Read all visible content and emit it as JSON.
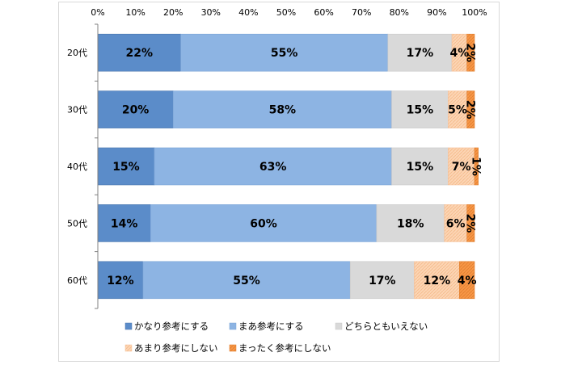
{
  "chart_data": {
    "type": "bar",
    "orientation": "horizontal",
    "stacked": true,
    "categories": [
      "20代",
      "30代",
      "40代",
      "50代",
      "60代"
    ],
    "series": [
      {
        "name": "かなり参考にする",
        "values": [
          22,
          20,
          15,
          14,
          12
        ],
        "labels": [
          "22%",
          "20%",
          "15%",
          "14%",
          "12%"
        ]
      },
      {
        "name": "まあ参考にする",
        "values": [
          55,
          58,
          63,
          60,
          55
        ],
        "labels": [
          "55%",
          "58%",
          "63%",
          "60%",
          "55%"
        ]
      },
      {
        "name": "どちらともいえない",
        "values": [
          17,
          15,
          15,
          18,
          17
        ],
        "labels": [
          "17%",
          "15%",
          "15%",
          "18%",
          "17%"
        ]
      },
      {
        "name": "あまり参考にしない",
        "values": [
          4,
          5,
          7,
          6,
          12
        ],
        "labels": [
          "4%",
          "5%",
          "7%",
          "6%",
          "12%"
        ]
      },
      {
        "name": "まったく参考にしない",
        "values": [
          2,
          2,
          1,
          2,
          4
        ],
        "labels": [
          "2%",
          "2%",
          "1%",
          "2%",
          "4%"
        ]
      }
    ],
    "xlim": [
      0,
      100
    ],
    "x_ticks": [
      "0%",
      "10%",
      "20%",
      "30%",
      "40%",
      "50%",
      "60%",
      "70%",
      "80%",
      "90%",
      "100%"
    ],
    "xlabel": "",
    "ylabel": "",
    "title": "",
    "grid": false,
    "legend_position": "bottom",
    "colors": {
      "series": [
        "#5b8cc9",
        "#8db4e3",
        "#d9d9d9",
        "#fcd5b4",
        "#f79646"
      ],
      "series_edge": [
        "#4a76ad",
        "#7aa3d6",
        "#c9c9c9",
        "#f5c199",
        "#e07f2f"
      ],
      "axis": "#808080"
    }
  }
}
